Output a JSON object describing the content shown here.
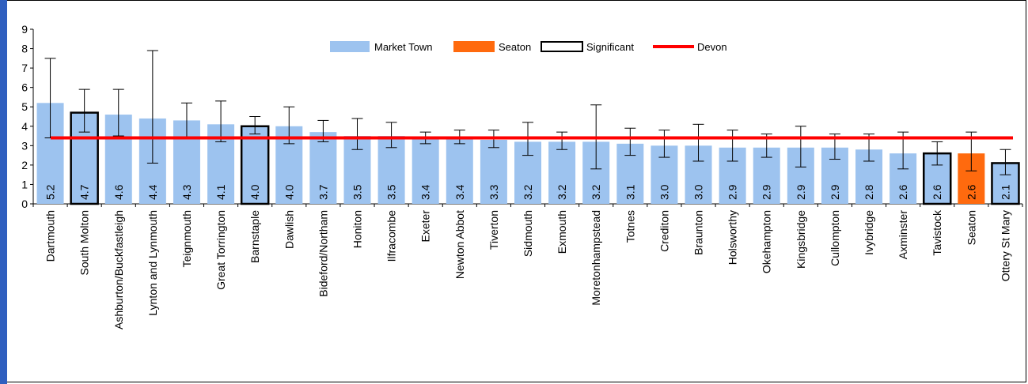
{
  "chart_data": {
    "type": "bar",
    "categories": [
      "Dartmouth",
      "South Molton",
      "Ashburton/Buckfastleigh",
      "Lynton and Lynmouth",
      "Teignmouth",
      "Great Torrington",
      "Barnstaple",
      "Dawlish",
      "Bideford/Northam",
      "Honiton",
      "Ilfracombe",
      "Exeter",
      "Newton Abbot",
      "Tiverton",
      "Sidmouth",
      "Exmouth",
      "Moretonhampstead",
      "Totnes",
      "Crediton",
      "Braunton",
      "Holsworthy",
      "Okehampton",
      "Kingsbridge",
      "Cullompton",
      "Ivybridge",
      "Axminster",
      "Tavistock",
      "Seaton",
      "Ottery St Mary"
    ],
    "values": [
      5.2,
      4.7,
      4.6,
      4.4,
      4.3,
      4.1,
      4.0,
      4.0,
      3.7,
      3.5,
      3.5,
      3.4,
      3.4,
      3.3,
      3.2,
      3.2,
      3.2,
      3.1,
      3.0,
      3.0,
      2.9,
      2.9,
      2.9,
      2.9,
      2.8,
      2.6,
      2.6,
      2.6,
      2.1
    ],
    "value_labels": [
      "5.2",
      "4.7",
      "4.6",
      "4.4",
      "4.3",
      "4.1",
      "4.0",
      "4.0",
      "3.7",
      "3.5",
      "3.5",
      "3.4",
      "3.4",
      "3.3",
      "3.2",
      "3.2",
      "3.2",
      "3.1",
      "3.0",
      "3.0",
      "2.9",
      "2.9",
      "2.9",
      "2.9",
      "2.8",
      "2.6",
      "2.6",
      "2.6",
      "2.1"
    ],
    "error_low": [
      3.4,
      3.7,
      3.5,
      2.1,
      3.4,
      3.2,
      3.6,
      3.1,
      3.2,
      2.8,
      2.9,
      3.1,
      3.1,
      2.9,
      2.5,
      2.8,
      1.8,
      2.5,
      2.4,
      2.2,
      2.2,
      2.4,
      1.9,
      2.3,
      2.2,
      1.8,
      2.0,
      1.7,
      1.5
    ],
    "error_high": [
      7.5,
      5.9,
      5.9,
      7.9,
      5.2,
      5.3,
      4.5,
      5.0,
      4.3,
      4.4,
      4.2,
      3.7,
      3.8,
      3.8,
      4.2,
      3.7,
      5.1,
      3.9,
      3.8,
      4.1,
      3.8,
      3.6,
      4.0,
      3.6,
      3.6,
      3.7,
      3.2,
      3.7,
      2.8
    ],
    "point_type": [
      "market",
      "significant",
      "market",
      "market",
      "market",
      "market",
      "significant",
      "market",
      "market",
      "market",
      "market",
      "market",
      "market",
      "market",
      "market",
      "market",
      "market",
      "market",
      "market",
      "market",
      "market",
      "market",
      "market",
      "market",
      "market",
      "market",
      "significant",
      "seaton",
      "significant"
    ],
    "devon_value": 3.4,
    "ylim": [
      0,
      9
    ],
    "yticks": [
      0,
      1,
      2,
      3,
      4,
      5,
      6,
      7,
      8,
      9
    ],
    "legend": {
      "position": "top-center",
      "items": [
        {
          "label": "Market Town",
          "kind": "market"
        },
        {
          "label": "Seaton",
          "kind": "seaton"
        },
        {
          "label": "Significant",
          "kind": "significant"
        },
        {
          "label": "Devon",
          "kind": "devon"
        }
      ]
    },
    "colors": {
      "market": "#9dc3ef",
      "seaton": "#ff6a0e",
      "significant_border": "#000000",
      "devon": "#ff0000",
      "error_bar": "#000000"
    }
  }
}
